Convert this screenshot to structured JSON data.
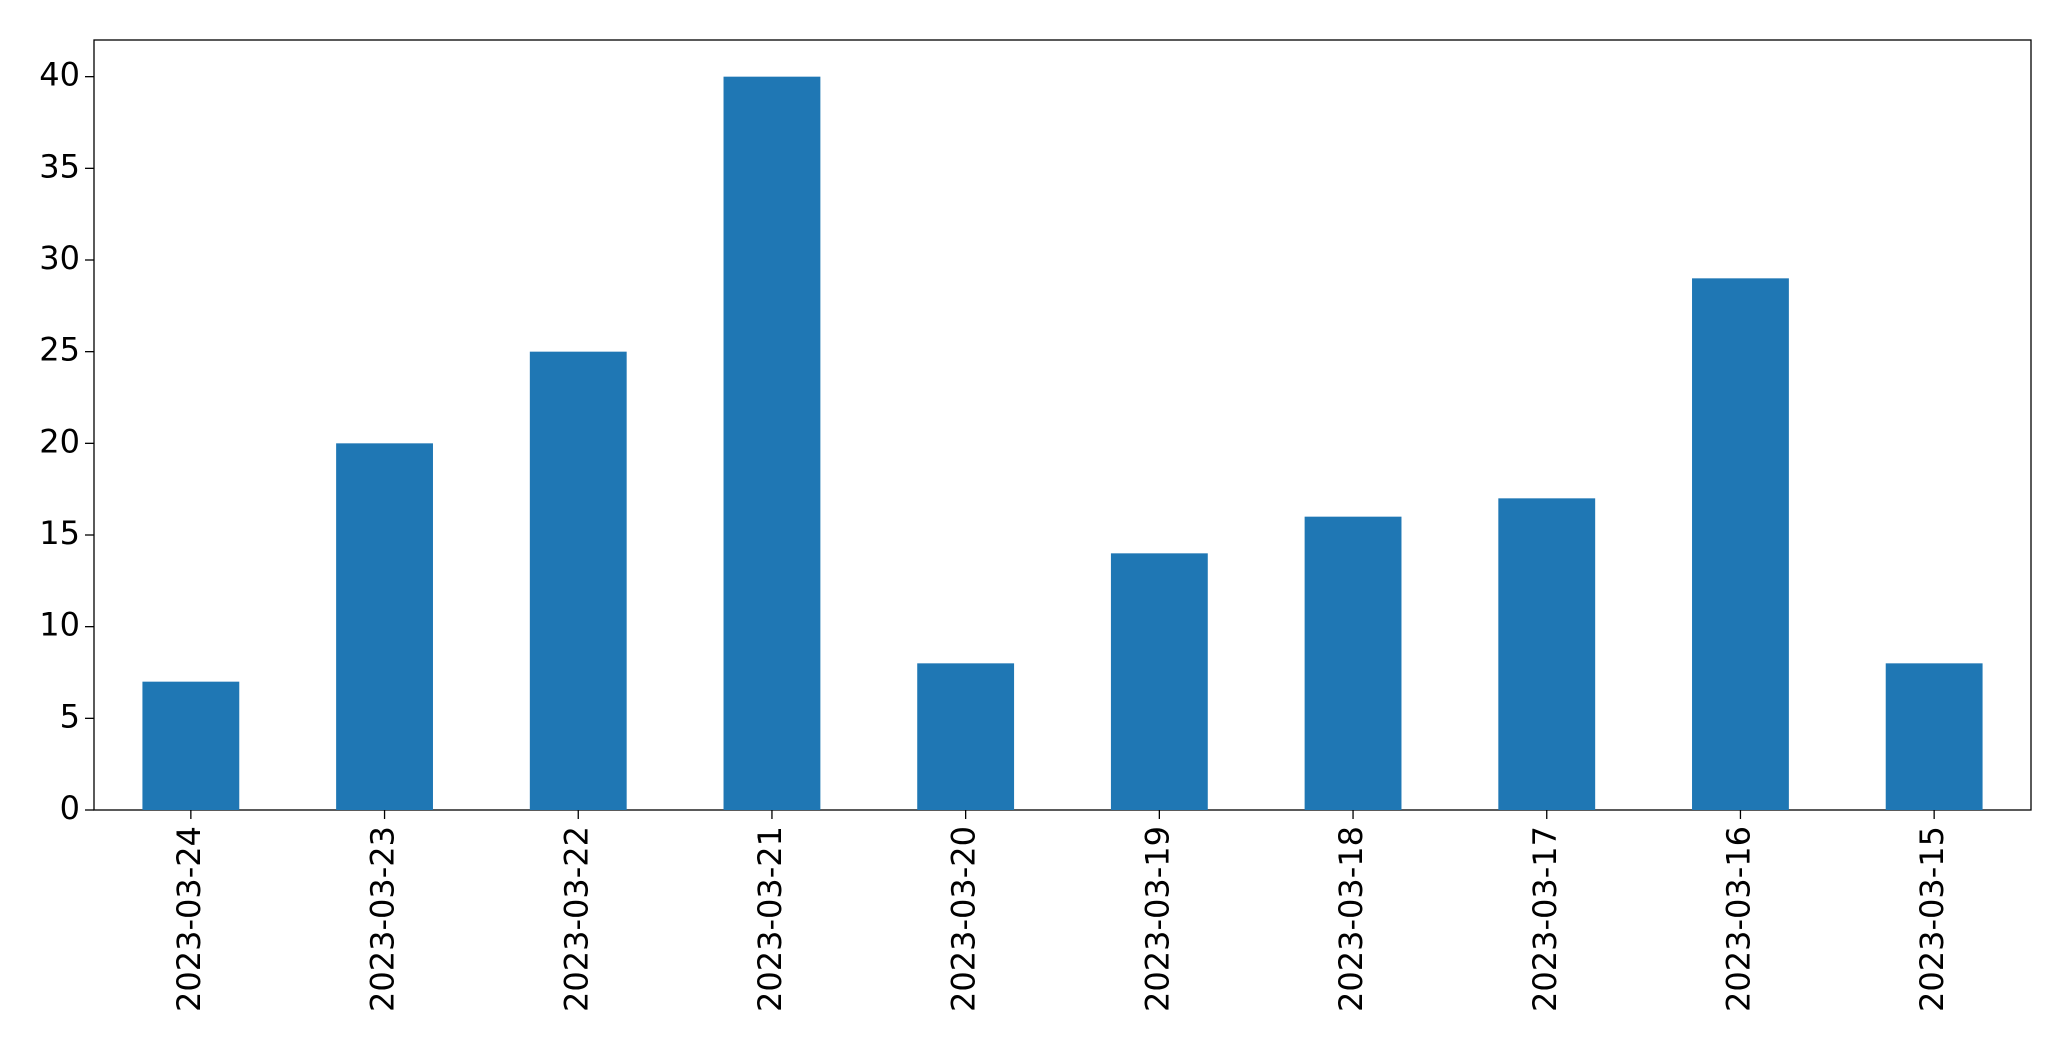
{
  "chart_data": {
    "type": "bar",
    "categories": [
      "2023-03-24",
      "2023-03-23",
      "2023-03-22",
      "2023-03-21",
      "2023-03-20",
      "2023-03-19",
      "2023-03-18",
      "2023-03-17",
      "2023-03-16",
      "2023-03-15"
    ],
    "values": [
      7,
      20,
      25,
      40,
      8,
      14,
      16,
      17,
      29,
      8
    ],
    "color": "#1f77b4",
    "ylim": [
      0,
      42
    ],
    "yticks": [
      0,
      5,
      10,
      15,
      20,
      25,
      30,
      35,
      40
    ],
    "grid": false
  }
}
